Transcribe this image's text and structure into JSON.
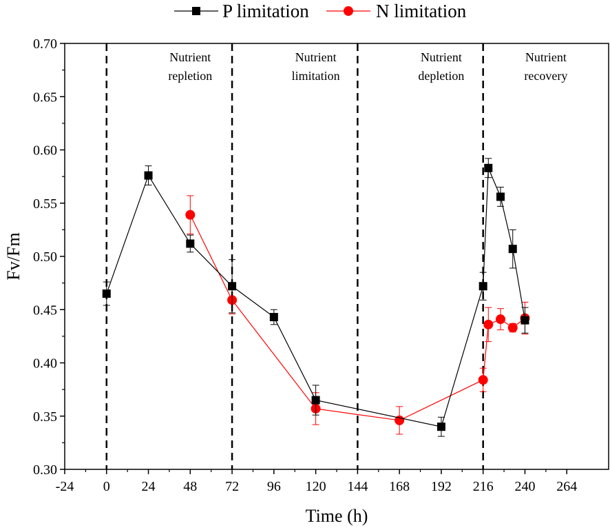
{
  "chart_data": {
    "type": "line",
    "title": "",
    "xlabel": "Time (h)",
    "ylabel": "Fv/Fm",
    "xlim": [
      -24,
      288
    ],
    "ylim": [
      0.3,
      0.7
    ],
    "xticks": [
      -24,
      0,
      24,
      48,
      72,
      96,
      120,
      144,
      168,
      192,
      216,
      240,
      264
    ],
    "xtick_labels": [
      "-24",
      "0",
      "24",
      "48",
      "72",
      "96",
      "120",
      "144",
      "168",
      "192",
      "216",
      "240",
      "264"
    ],
    "yticks": [
      0.3,
      0.35,
      0.4,
      0.45,
      0.5,
      0.55,
      0.6,
      0.65,
      0.7
    ],
    "ytick_labels": [
      "0.30",
      "0.35",
      "0.40",
      "0.45",
      "0.50",
      "0.55",
      "0.60",
      "0.65",
      "0.70"
    ],
    "legend_position": "top-center",
    "vlines": [
      0,
      72,
      144,
      216
    ],
    "phases": [
      {
        "lines": [
          "Nutrient",
          "repletion"
        ],
        "x": 48
      },
      {
        "lines": [
          "Nutrient",
          "limitation"
        ],
        "x": 120
      },
      {
        "lines": [
          "Nutrient",
          "depletion"
        ],
        "x": 192
      },
      {
        "lines": [
          "Nutrient",
          "recovery"
        ],
        "x": 252
      }
    ],
    "series": [
      {
        "name": "P limitation",
        "color": "#000000",
        "marker": "square",
        "x": [
          0,
          24,
          48,
          72,
          96,
          120,
          192,
          216,
          219,
          226,
          233,
          240
        ],
        "y": [
          0.465,
          0.576,
          0.512,
          0.472,
          0.443,
          0.365,
          0.34,
          0.472,
          0.583,
          0.556,
          0.507,
          0.44
        ],
        "err": [
          0.011,
          0.009,
          0.008,
          0.025,
          0.007,
          0.014,
          0.009,
          0.013,
          0.009,
          0.009,
          0.018,
          0.012
        ]
      },
      {
        "name": "N limitation",
        "color": "#ff0000",
        "marker": "circle",
        "x": [
          48,
          72,
          120,
          168,
          216,
          219,
          226,
          233,
          240
        ],
        "y": [
          0.539,
          0.459,
          0.357,
          0.346,
          0.384,
          0.436,
          0.441,
          0.433,
          0.442
        ],
        "err": [
          0.018,
          0.013,
          0.015,
          0.013,
          0.011,
          0.016,
          0.01,
          0.004,
          0.015
        ]
      }
    ]
  }
}
